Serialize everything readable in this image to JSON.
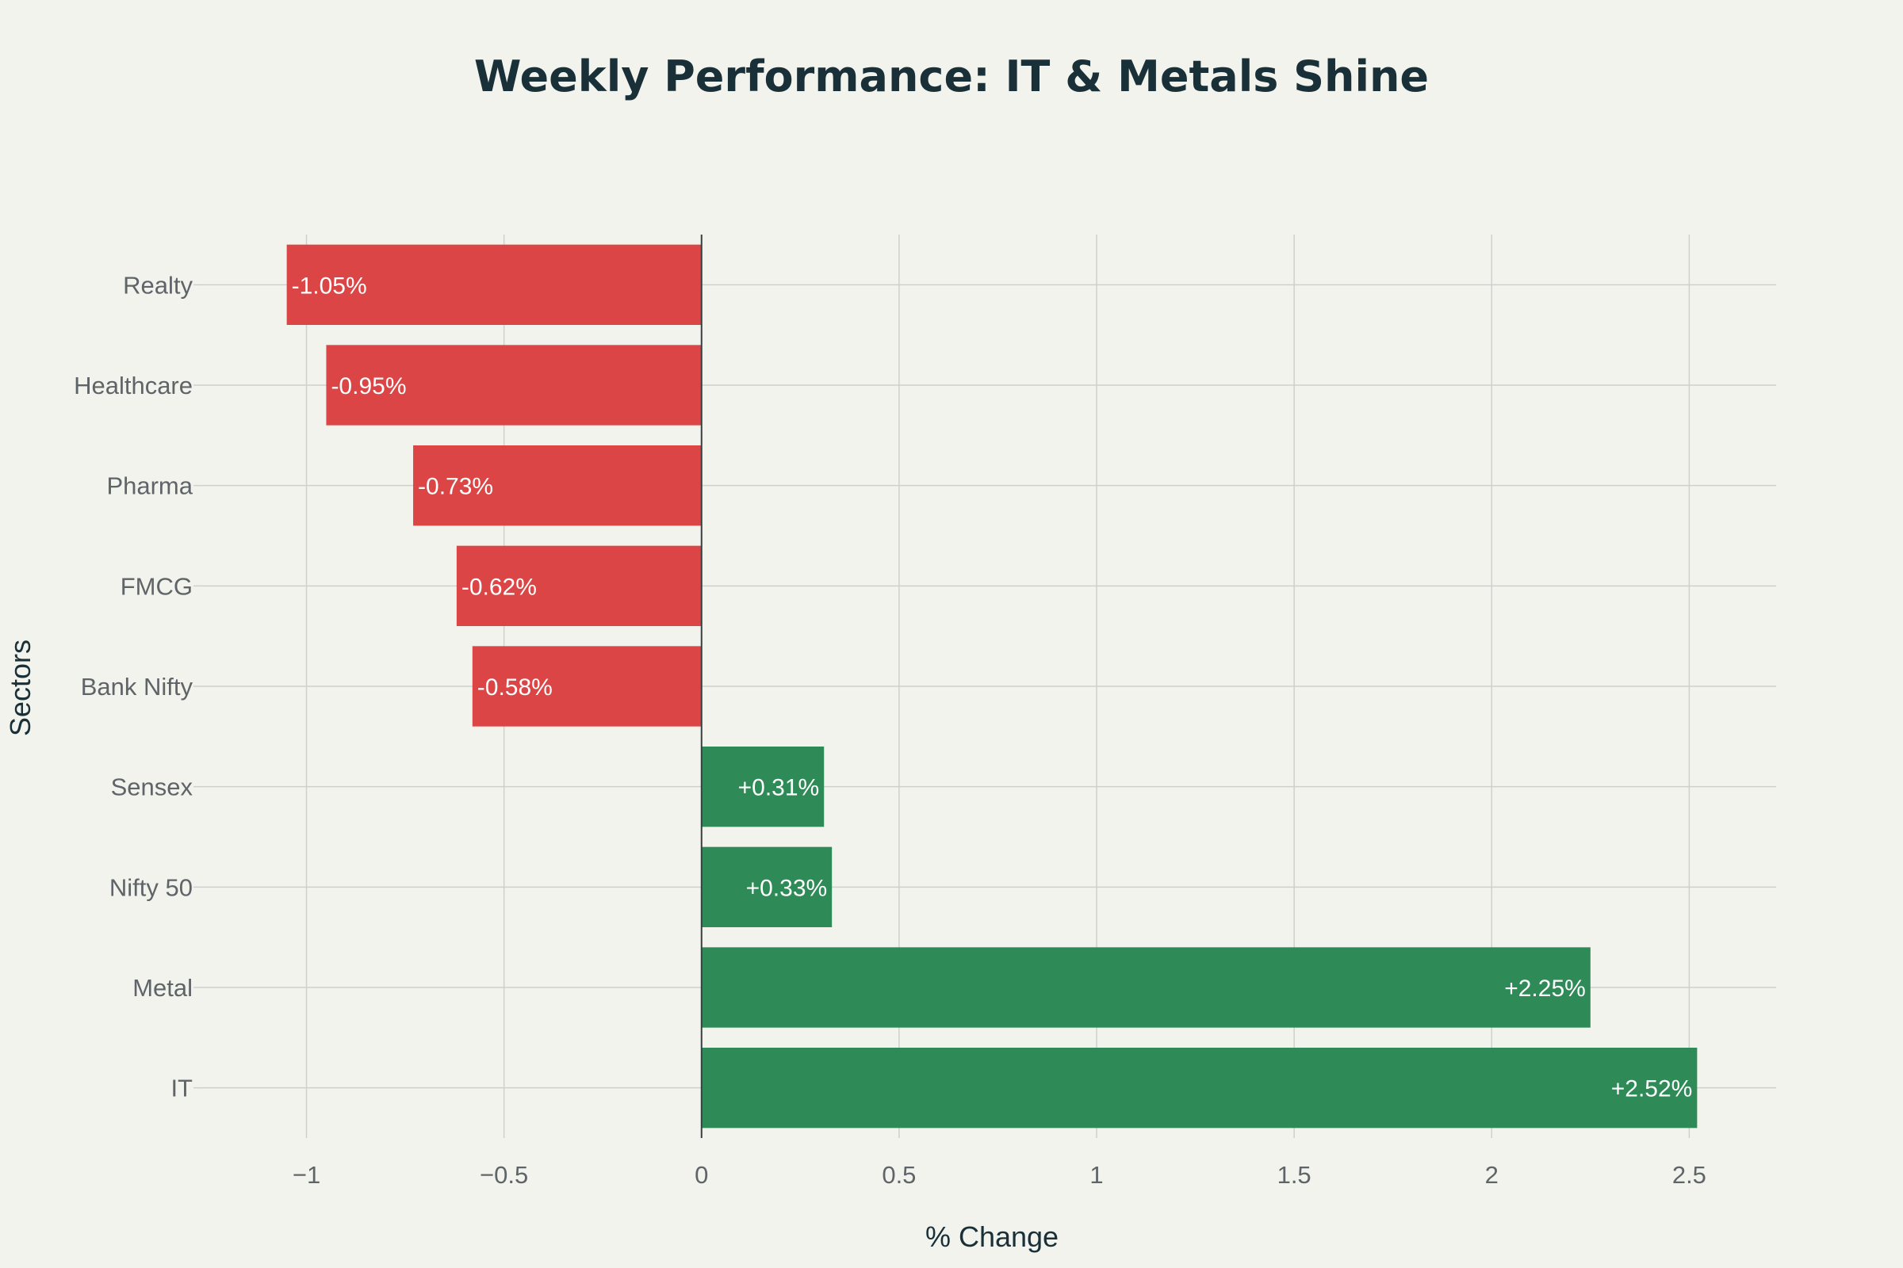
{
  "chart_data": {
    "type": "bar",
    "orientation": "horizontal",
    "title": "Weekly Performance: IT & Metals Shine",
    "xlabel": "% Change",
    "ylabel": "Sectors",
    "xlim": [
      -1.27,
      2.72
    ],
    "xticks": [
      -1,
      -0.5,
      0,
      0.5,
      1,
      1.5,
      2,
      2.5
    ],
    "xtick_labels": [
      "−1",
      "−0.5",
      "0",
      "0.5",
      "1",
      "1.5",
      "2",
      "2.5"
    ],
    "categories": [
      "Realty",
      "Healthcare",
      "Pharma",
      "FMCG",
      "Bank Nifty",
      "Sensex",
      "Nifty 50",
      "Metal",
      "IT"
    ],
    "values": [
      -1.05,
      -0.95,
      -0.73,
      -0.62,
      -0.58,
      0.31,
      0.33,
      2.25,
      2.52
    ],
    "data_labels": [
      "-1.05%",
      "-0.95%",
      "-0.73%",
      "-0.62%",
      "-0.58%",
      "+0.31%",
      "+0.33%",
      "+2.25%",
      "+2.52%"
    ],
    "colors": {
      "positive": "#2e8b57",
      "negative": "#db4545"
    },
    "grid": true
  }
}
